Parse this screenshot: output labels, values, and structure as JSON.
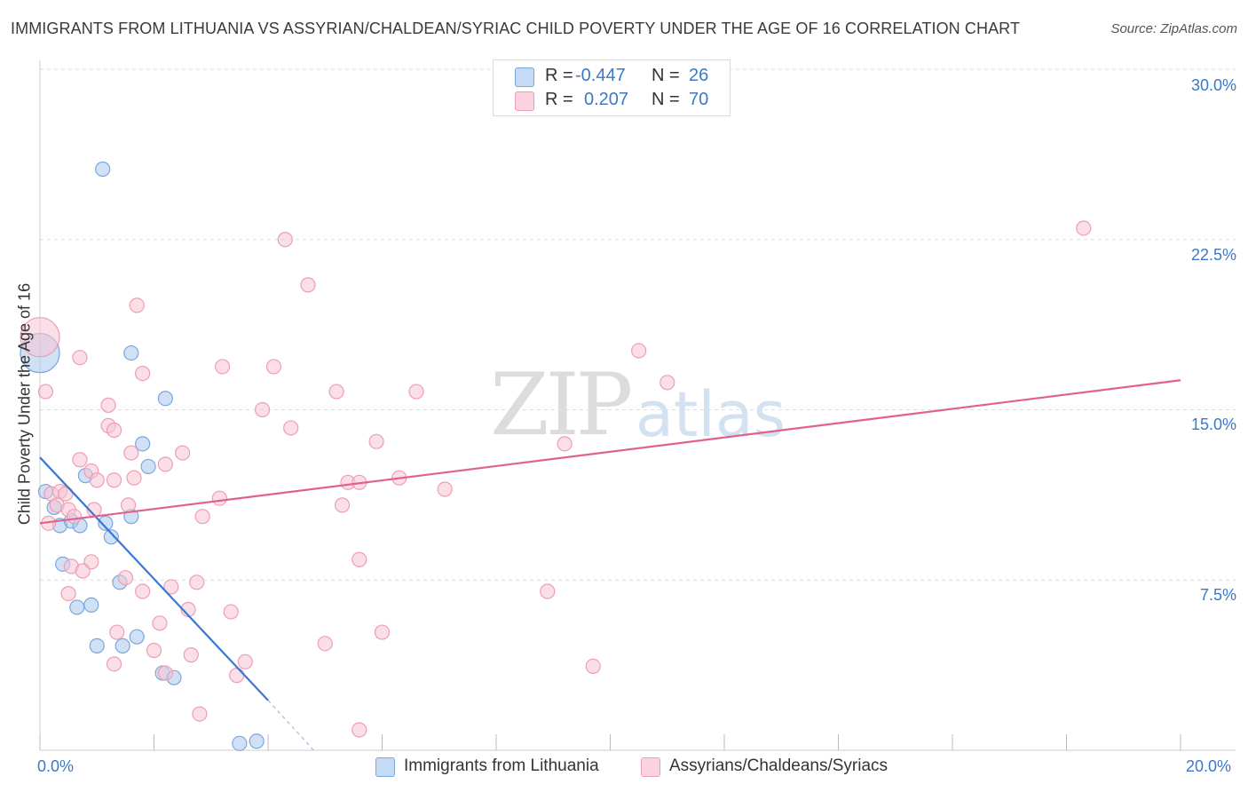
{
  "title": "IMMIGRANTS FROM LITHUANIA VS ASSYRIAN/CHALDEAN/SYRIAC CHILD POVERTY UNDER THE AGE OF 16 CORRELATION CHART",
  "source": "Source: ZipAtlas.com",
  "watermark": {
    "zip": "ZIP",
    "atlas": "atlas"
  },
  "legend": {
    "rows": [
      {
        "r_label": "R =",
        "r_value": "-0.447",
        "n_label": "N =",
        "n_value": "26",
        "color": "#a9c8ef",
        "border": "#7aa6de"
      },
      {
        "r_label": "R =",
        "r_value": "0.207",
        "n_label": "N =",
        "n_value": "70",
        "color": "#f7c5d3",
        "border": "#ee9db4"
      }
    ]
  },
  "bottom_legend": [
    {
      "label": "Immigrants from Lithuania",
      "color": "#c5dbf5",
      "border": "#7aa6de"
    },
    {
      "label": "Assyrians/Chaldeans/Syriacs",
      "color": "#fad3de",
      "border": "#ee9db4"
    }
  ],
  "chart_data": {
    "type": "scatter",
    "title": "IMMIGRANTS FROM LITHUANIA VS ASSYRIAN/CHALDEAN/SYRIAC CHILD POVERTY UNDER THE AGE OF 16 CORRELATION CHART",
    "xlabel": "",
    "ylabel": "Child Poverty Under the Age of 16",
    "xlim": [
      0,
      20
    ],
    "ylim": [
      0,
      30
    ],
    "x_tick_labels": [
      "0.0%",
      "20.0%"
    ],
    "y_tick_labels": [
      "7.5%",
      "15.0%",
      "22.5%",
      "30.0%"
    ],
    "y_tick_values": [
      7.5,
      15,
      22.5,
      30
    ],
    "series": [
      {
        "name": "Immigrants from Lithuania",
        "color": "#3a78d6",
        "fill": "#a9c8ef",
        "points": [
          [
            0.0,
            17.5,
            "big"
          ],
          [
            1.1,
            25.6
          ],
          [
            1.6,
            17.5
          ],
          [
            2.2,
            15.5
          ],
          [
            1.8,
            13.5
          ],
          [
            1.9,
            12.5
          ],
          [
            0.8,
            12.1
          ],
          [
            0.1,
            11.4
          ],
          [
            0.25,
            10.7
          ],
          [
            0.35,
            9.9
          ],
          [
            0.55,
            10.1
          ],
          [
            0.7,
            9.9
          ],
          [
            1.15,
            10.0
          ],
          [
            1.25,
            9.4
          ],
          [
            1.6,
            10.3
          ],
          [
            0.4,
            8.2
          ],
          [
            1.4,
            7.4
          ],
          [
            0.65,
            6.3
          ],
          [
            0.9,
            6.4
          ],
          [
            1.7,
            5.0
          ],
          [
            1.0,
            4.6
          ],
          [
            1.45,
            4.6
          ],
          [
            2.15,
            3.4
          ],
          [
            2.35,
            3.2
          ],
          [
            3.5,
            0.3
          ],
          [
            3.8,
            0.4
          ]
        ],
        "trend": {
          "x0": 0.0,
          "y0": 12.9,
          "x1": 4.0,
          "y1": 2.2,
          "dash_x1": 4.8,
          "dash_y1": 0.0
        }
      },
      {
        "name": "Assyrians/Chaldeans/Syriacs",
        "color": "#e0628b",
        "fill": "#f7c5d3",
        "points": [
          [
            0.0,
            18.2,
            "big"
          ],
          [
            0.1,
            15.8
          ],
          [
            0.7,
            17.3
          ],
          [
            1.8,
            16.6
          ],
          [
            1.7,
            19.6
          ],
          [
            4.3,
            22.5
          ],
          [
            4.7,
            20.5
          ],
          [
            3.2,
            16.9
          ],
          [
            4.1,
            16.9
          ],
          [
            5.2,
            15.8
          ],
          [
            6.6,
            15.8
          ],
          [
            3.9,
            15.0
          ],
          [
            4.4,
            14.2
          ],
          [
            1.2,
            15.2
          ],
          [
            1.2,
            14.3
          ],
          [
            1.3,
            14.1
          ],
          [
            5.9,
            13.6
          ],
          [
            2.5,
            13.1
          ],
          [
            1.6,
            13.1
          ],
          [
            0.7,
            12.8
          ],
          [
            0.9,
            12.3
          ],
          [
            2.2,
            12.6
          ],
          [
            1.0,
            11.9
          ],
          [
            1.3,
            11.9
          ],
          [
            1.65,
            12.0
          ],
          [
            5.4,
            11.8
          ],
          [
            5.6,
            11.8
          ],
          [
            6.3,
            12.0
          ],
          [
            7.1,
            11.5
          ],
          [
            3.15,
            11.1
          ],
          [
            0.2,
            11.3
          ],
          [
            0.35,
            11.4
          ],
          [
            0.45,
            11.3
          ],
          [
            0.3,
            10.8
          ],
          [
            0.5,
            10.6
          ],
          [
            0.95,
            10.6
          ],
          [
            1.55,
            10.8
          ],
          [
            2.85,
            10.3
          ],
          [
            5.3,
            10.8
          ],
          [
            0.6,
            10.3
          ],
          [
            0.15,
            10.0
          ],
          [
            0.9,
            8.3
          ],
          [
            0.55,
            8.1
          ],
          [
            0.75,
            7.9
          ],
          [
            1.5,
            7.6
          ],
          [
            5.6,
            8.4
          ],
          [
            2.75,
            7.4
          ],
          [
            1.8,
            7.0
          ],
          [
            2.3,
            7.2
          ],
          [
            0.5,
            6.9
          ],
          [
            8.9,
            7.0
          ],
          [
            2.6,
            6.2
          ],
          [
            3.35,
            6.1
          ],
          [
            2.1,
            5.6
          ],
          [
            1.35,
            5.2
          ],
          [
            6.0,
            5.2
          ],
          [
            5.0,
            4.7
          ],
          [
            2.0,
            4.4
          ],
          [
            2.65,
            4.2
          ],
          [
            1.3,
            3.8
          ],
          [
            3.6,
            3.9
          ],
          [
            2.2,
            3.4
          ],
          [
            3.45,
            3.3
          ],
          [
            9.7,
            3.7
          ],
          [
            2.8,
            1.6
          ],
          [
            5.6,
            0.9
          ],
          [
            10.5,
            17.6
          ],
          [
            11.0,
            16.2
          ],
          [
            9.2,
            13.5
          ],
          [
            18.3,
            23.0
          ]
        ],
        "trend": {
          "x0": 0.0,
          "y0": 10.0,
          "x1": 20.0,
          "y1": 16.3
        }
      }
    ]
  }
}
